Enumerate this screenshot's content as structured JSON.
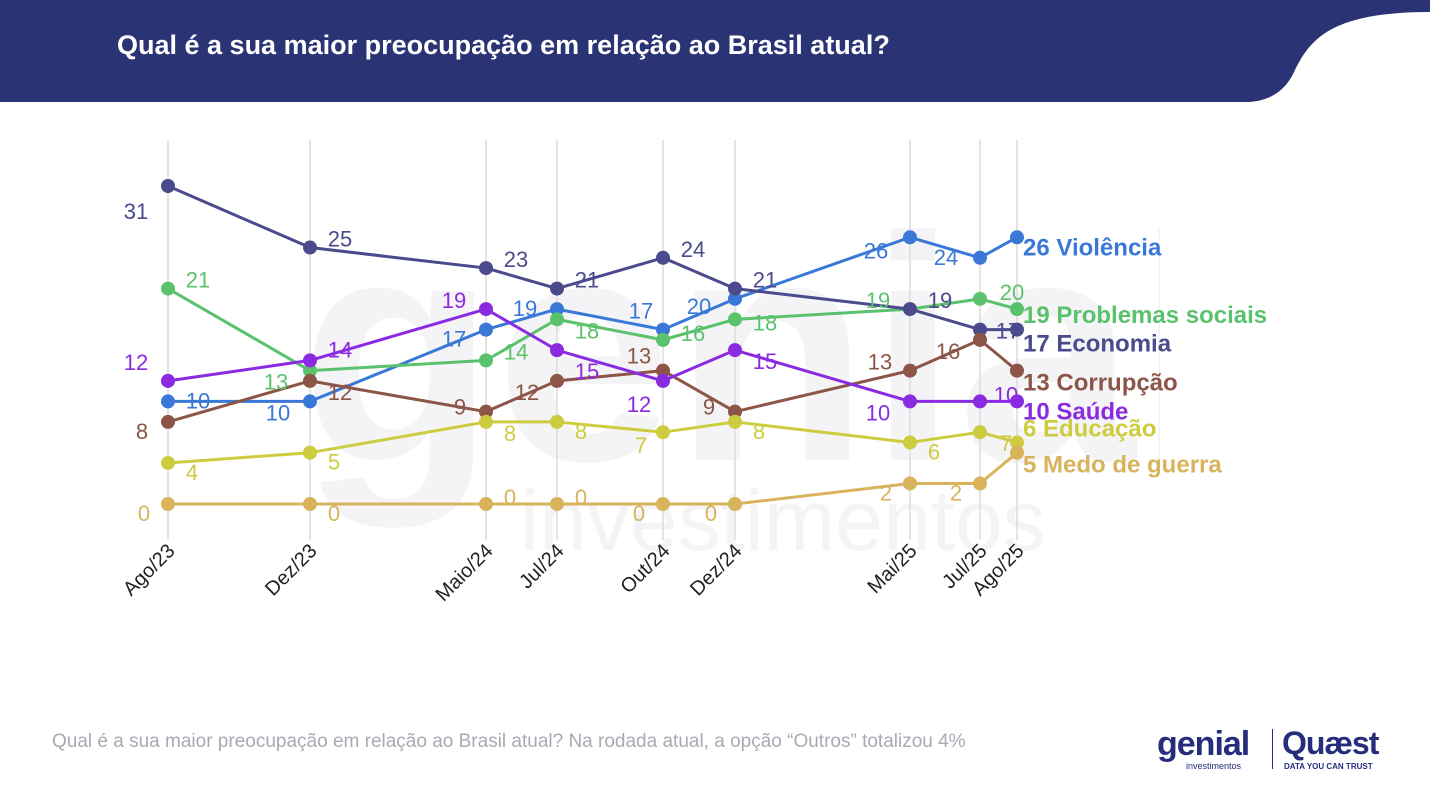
{
  "header": {
    "title": "Qual é a sua maior preocupação em relação ao Brasil atual?",
    "color": "#2a3374"
  },
  "footnote": "Qual é a sua maior preocupação em relação ao Brasil atual? Na rodada atual, a opção “Outros” totalizou 4%",
  "watermark": {
    "brand": "genial",
    "sub": "investimentos"
  },
  "logos": {
    "genial": "genial",
    "genial_sub": "investimentos",
    "quaest": "Quæst",
    "quaest_sub": "DATA YOU CAN TRUST"
  },
  "chart_data": {
    "type": "line",
    "title": "Qual é a sua maior preocupação em relação ao Brasil atual?",
    "xlabel": "",
    "ylabel": "",
    "categories": [
      "Ago/23",
      "Dez/23",
      "Maio/24",
      "Jul/24",
      "Out/24",
      "Dez/24",
      "Mai/25",
      "Jul/25",
      "Ago/25"
    ],
    "ylim": [
      0,
      31
    ],
    "grid": "vertical",
    "legend": "end-labels",
    "series": [
      {
        "name": "Violência",
        "color": "#3a78d8",
        "values": [
          10,
          10,
          17,
          19,
          17,
          20,
          26,
          24,
          26
        ],
        "label_pos": [
          [
            30,
            0
          ],
          [
            -32,
            12
          ],
          [
            -32,
            10
          ],
          [
            -32,
            0
          ],
          [
            -22,
            -18
          ],
          [
            -36,
            8
          ],
          [
            -34,
            14
          ],
          [
            -34,
            0
          ],
          [
            0,
            0
          ]
        ],
        "end_label": "26 Violência"
      },
      {
        "name": "Problemas sociais",
        "color": "#5ac26c",
        "values": [
          21,
          13,
          14,
          18,
          16,
          18,
          19,
          20,
          19
        ],
        "label_pos": [
          [
            30,
            -8
          ],
          [
            -34,
            12
          ],
          [
            30,
            -8
          ],
          [
            30,
            12
          ],
          [
            30,
            -6
          ],
          [
            30,
            4
          ],
          [
            -32,
            -8
          ],
          [
            32,
            -6
          ],
          [
            0,
            0
          ]
        ],
        "end_label": "19 Problemas sociais"
      },
      {
        "name": "Economia",
        "color": "#4a4a8c",
        "values": [
          31,
          25,
          23,
          21,
          24,
          21,
          19,
          17,
          17
        ],
        "label_pos": [
          [
            -32,
            26
          ],
          [
            30,
            -8
          ],
          [
            30,
            -8
          ],
          [
            30,
            -8
          ],
          [
            30,
            -8
          ],
          [
            30,
            -8
          ],
          [
            30,
            -8
          ],
          [
            28,
            2
          ],
          [
            0,
            0
          ]
        ],
        "end_label": "17 Economia"
      },
      {
        "name": "Corrupção",
        "color": "#8c5548",
        "values": [
          8,
          12,
          9,
          12,
          13,
          9,
          13,
          16,
          13
        ],
        "label_pos": [
          [
            -26,
            10
          ],
          [
            30,
            12
          ],
          [
            -26,
            -4
          ],
          [
            -30,
            12
          ],
          [
            -24,
            -14
          ],
          [
            -26,
            -4
          ],
          [
            -30,
            -8
          ],
          [
            -32,
            12
          ],
          [
            0,
            0
          ]
        ],
        "end_label": "13 Corrupção"
      },
      {
        "name": "Saúde",
        "color": "#8a2be2",
        "values": [
          12,
          14,
          19,
          15,
          12,
          15,
          10,
          10,
          10
        ],
        "label_pos": [
          [
            -32,
            -18
          ],
          [
            30,
            -10
          ],
          [
            -32,
            -8
          ],
          [
            30,
            22
          ],
          [
            -24,
            24
          ],
          [
            30,
            12
          ],
          [
            -32,
            12
          ],
          [
            26,
            -6
          ],
          [
            0,
            0
          ]
        ],
        "end_label": "10 Saúde"
      },
      {
        "name": "Educação",
        "color": "#cdcc3f",
        "values": [
          4,
          5,
          8,
          8,
          7,
          8,
          6,
          7,
          6
        ],
        "label_pos": [
          [
            24,
            10
          ],
          [
            24,
            10
          ],
          [
            24,
            12
          ],
          [
            24,
            10
          ],
          [
            -22,
            14
          ],
          [
            24,
            10
          ],
          [
            24,
            10
          ],
          [
            26,
            12
          ],
          [
            0,
            0
          ]
        ],
        "end_label": "6 Educação"
      },
      {
        "name": "Medo de guerra",
        "color": "#d9b35b",
        "values": [
          0,
          0,
          0,
          0,
          0,
          0,
          2,
          2,
          5
        ],
        "label_pos": [
          [
            -24,
            10
          ],
          [
            24,
            10
          ],
          [
            24,
            -6
          ],
          [
            24,
            -6
          ],
          [
            -24,
            10
          ],
          [
            -24,
            10
          ],
          [
            -24,
            10
          ],
          [
            -24,
            10
          ],
          [
            0,
            0
          ]
        ],
        "end_label": "5 Medo de guerra"
      }
    ],
    "end_label_offsets": [
      [
        0,
        18
      ],
      [
        0,
        14
      ],
      [
        0,
        22
      ],
      [
        0,
        20
      ],
      [
        0,
        18
      ],
      [
        0,
        -6
      ],
      [
        0,
        20
      ]
    ]
  }
}
